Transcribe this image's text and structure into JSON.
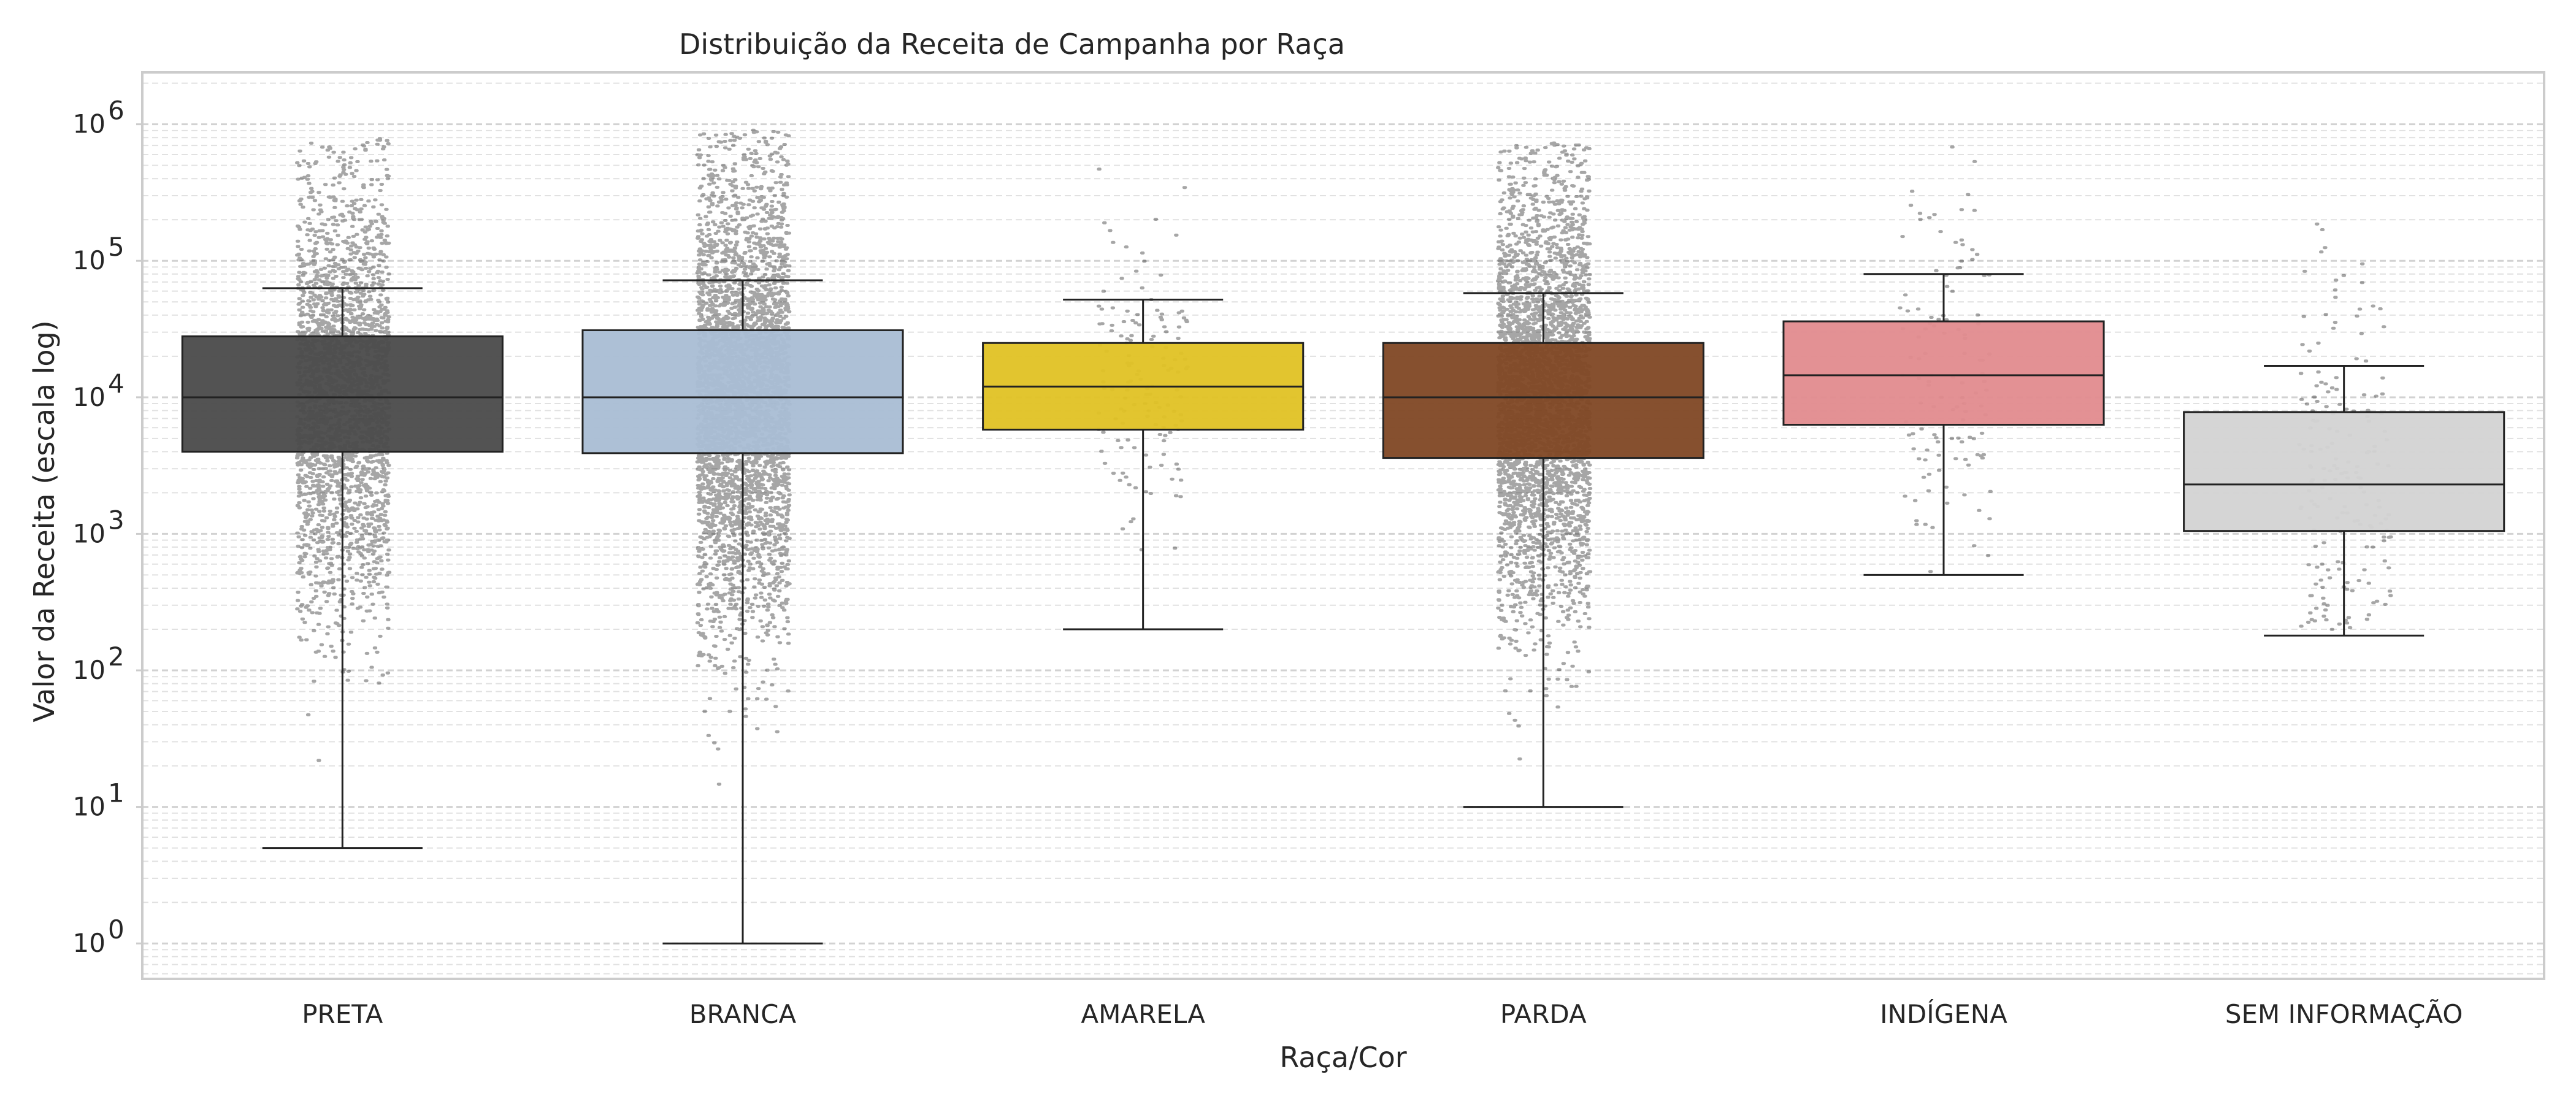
{
  "chart_data": {
    "type": "box",
    "title": "Distribuição da Receita de Campanha por Raça",
    "xlabel": "Raça/Cor",
    "ylabel": "Valor da Receita (escala log)",
    "yscale": "log",
    "ylim": [
      0.55,
      2400000
    ],
    "ytick_labels": [
      {
        "base": "10",
        "exp": "0"
      },
      {
        "base": "10",
        "exp": "1"
      },
      {
        "base": "10",
        "exp": "2"
      },
      {
        "base": "10",
        "exp": "3"
      },
      {
        "base": "10",
        "exp": "4"
      },
      {
        "base": "10",
        "exp": "5"
      },
      {
        "base": "10",
        "exp": "6"
      }
    ],
    "grid": {
      "y_major": true,
      "y_minor": true,
      "x": false,
      "style": "dashed"
    },
    "categories": [
      {
        "name": "PRETA",
        "color": "#4a4a4a",
        "q1": 4000,
        "median": 10000,
        "q3": 28000,
        "whisker_low": 5,
        "whisker_high": 63000,
        "points": 2500
      },
      {
        "name": "BRANCA",
        "color": "#a9bdd4",
        "q1": 3900,
        "median": 10000,
        "q3": 31000,
        "whisker_low": 1,
        "whisker_high": 72000,
        "points": 7000
      },
      {
        "name": "AMARELA",
        "color": "#e0c224",
        "q1": 5800,
        "median": 12000,
        "q3": 25000,
        "whisker_low": 200,
        "whisker_high": 52000,
        "points": 140
      },
      {
        "name": "PARDA",
        "color": "#7f4724",
        "q1": 3600,
        "median": 10000,
        "q3": 25000,
        "whisker_low": 10,
        "whisker_high": 58000,
        "points": 8000
      },
      {
        "name": "INDÍGENA",
        "color": "#e28b8e",
        "q1": 6300,
        "median": 14500,
        "q3": 36000,
        "whisker_low": 500,
        "whisker_high": 80000,
        "points": 120
      },
      {
        "name": "SEM INFORMAÇÃO",
        "color": "#d3d3d3",
        "q1": 1050,
        "median": 2300,
        "q3": 7800,
        "whisker_low": 180,
        "whisker_high": 17000,
        "points": 180
      }
    ]
  }
}
